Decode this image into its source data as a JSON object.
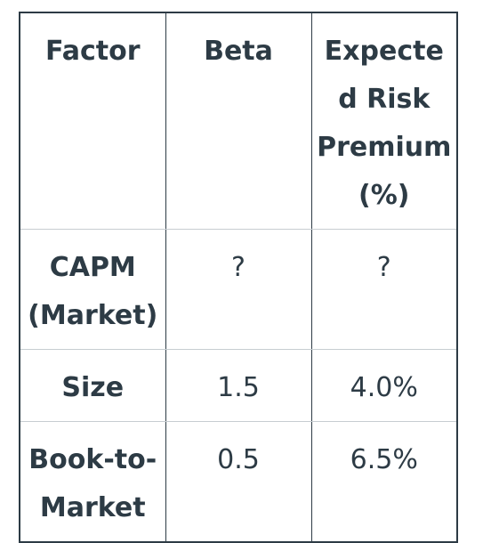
{
  "table": {
    "headers": [
      "Factor",
      "Beta",
      "Expected Risk Premium (%)"
    ],
    "rows": [
      {
        "factor": "CAPM (Market)",
        "beta": "?",
        "premium": "?"
      },
      {
        "factor": "Size",
        "beta": "1.5",
        "premium": "4.0%"
      },
      {
        "factor": "Book-to-Market",
        "beta": "0.5",
        "premium": "6.5%"
      }
    ]
  }
}
